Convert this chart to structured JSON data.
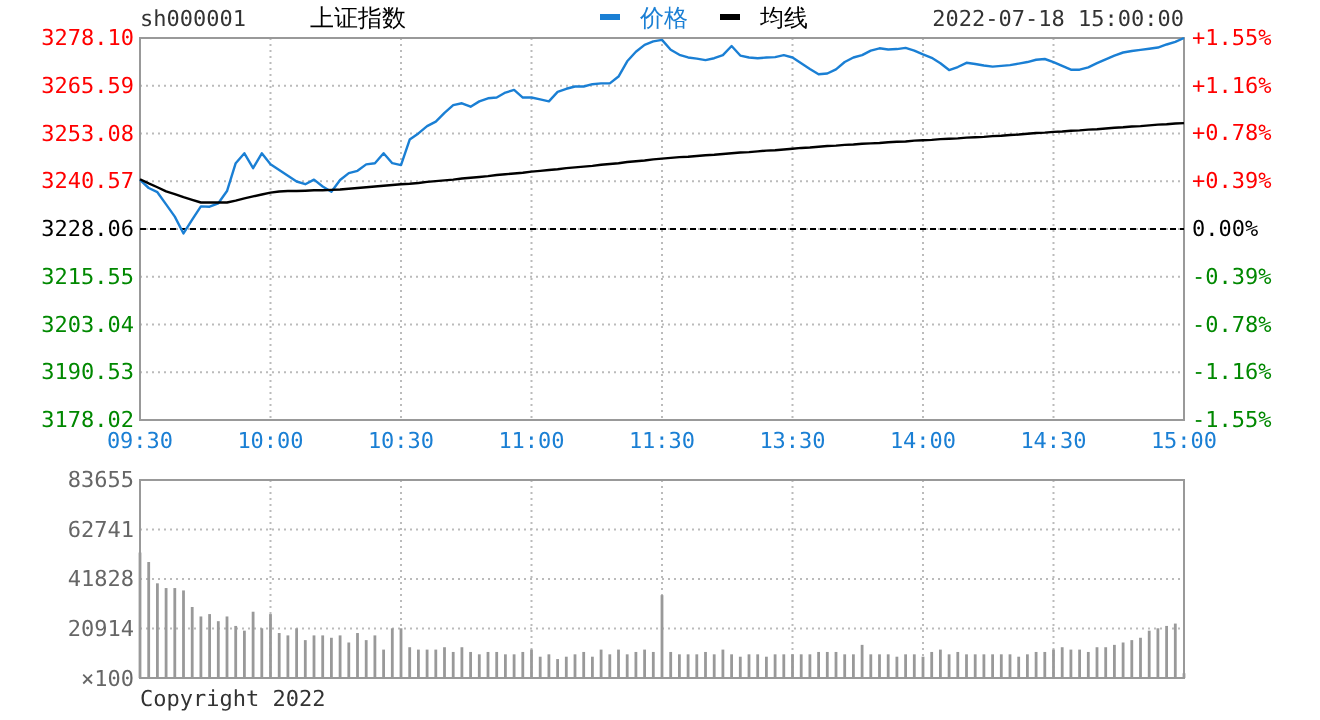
{
  "chart_data": [
    {
      "type": "line",
      "title": "上证指数",
      "annotations": [
        "sh000001",
        "2022-07-18 15:00:00"
      ],
      "categories": [
        "09:30",
        null,
        null,
        null,
        null,
        null,
        null,
        null,
        null,
        null,
        null,
        null,
        null,
        null,
        null,
        "10:00",
        null,
        null,
        null,
        null,
        null,
        null,
        null,
        null,
        null,
        null,
        null,
        null,
        null,
        null,
        "10:30",
        null,
        null,
        null,
        null,
        null,
        null,
        null,
        null,
        null,
        null,
        null,
        null,
        null,
        null,
        "11:00",
        null,
        null,
        null,
        null,
        null,
        null,
        null,
        null,
        null,
        null,
        null,
        null,
        null,
        null,
        "11:30",
        null,
        null,
        null,
        null,
        null,
        null,
        null,
        null,
        null,
        null,
        null,
        null,
        null,
        null,
        "13:30",
        null,
        null,
        null,
        null,
        null,
        null,
        null,
        null,
        null,
        null,
        null,
        null,
        null,
        null,
        "14:00",
        null,
        null,
        null,
        null,
        null,
        null,
        null,
        null,
        null,
        null,
        null,
        null,
        null,
        null,
        "14:30",
        null,
        null,
        null,
        null,
        null,
        null,
        null,
        null,
        null,
        null,
        null,
        null,
        null,
        null,
        "15:00"
      ],
      "ylim": [
        3178.02,
        3278.1
      ],
      "yticks": [
        3178.02,
        3190.53,
        3203.04,
        3215.55,
        3228.06,
        3240.57,
        3253.08,
        3265.59,
        {
          "value": 3278.1,
          "label": "3278.10"
        }
      ],
      "y2lim": [
        -1.55,
        1.55
      ],
      "y2ticks": [
        {
          "value": -1.55,
          "label": "-1.55%"
        },
        {
          "value": -1.16,
          "label": "-1.16%"
        },
        {
          "value": -0.78,
          "label": "-0.78%"
        },
        {
          "value": -0.39,
          "label": "-0.39%"
        },
        {
          "value": 0,
          "label": "0.00%"
        },
        {
          "value": 0.39,
          "label": "+0.39%"
        },
        {
          "value": 0.78,
          "label": "+0.78%"
        },
        {
          "value": 1.16,
          "label": "+1.16%"
        },
        {
          "value": 1.55,
          "label": "+1.55%"
        }
      ],
      "grid": true,
      "legend": "top",
      "ref_lines": [
        {
          "axis": "y",
          "value": 3228.06,
          "color": "#000000",
          "line_style": "dashed"
        }
      ],
      "series": [
        {
          "name": "价格",
          "color": "#1a7fd4",
          "values": [
            3240.9,
            3238.8,
            3237.7,
            3234.5,
            3231.3,
            3226.9,
            3230.5,
            3234.0,
            3233.9,
            3234.8,
            3238.0,
            3245.3,
            3247.9,
            3244.0,
            3247.9,
            3245.0,
            3243.5,
            3242.0,
            3240.5,
            3239.8,
            3241.0,
            3239.2,
            3237.8,
            3240.9,
            3242.7,
            3243.3,
            3245.0,
            3245.3,
            3247.9,
            3245.3,
            3244.8,
            3251.5,
            3253.1,
            3255.0,
            3256.2,
            3258.5,
            3260.5,
            3261.0,
            3260.1,
            3261.5,
            3262.3,
            3262.5,
            3263.8,
            3264.5,
            3262.5,
            3262.5,
            3262.0,
            3261.5,
            3264.0,
            3264.8,
            3265.4,
            3265.4,
            3266.0,
            3266.2,
            3266.2,
            3268.0,
            3272.0,
            3274.5,
            3276.3,
            3277.2,
            3277.6,
            3275.0,
            3273.7,
            3273.0,
            3272.7,
            3272.3,
            3272.8,
            3273.6,
            3276.0,
            3273.5,
            3273.0,
            3272.8,
            3273.0,
            3273.1,
            3273.6,
            3273.0,
            3271.5,
            3270.0,
            3268.6,
            3268.8,
            3269.9,
            3271.8,
            3273.0,
            3273.6,
            3274.8,
            3275.4,
            3275.1,
            3275.2,
            3275.5,
            3274.8,
            3273.8,
            3272.9,
            3271.5,
            3269.7,
            3270.5,
            3271.6,
            3271.3,
            3270.9,
            3270.6,
            3270.8,
            3271.0,
            3271.4,
            3271.8,
            3272.4,
            3272.6,
            3271.8,
            3270.8,
            3269.8,
            3269.8,
            3270.4,
            3271.5,
            3272.5,
            3273.5,
            3274.3,
            3274.7,
            3275.0,
            3275.3,
            3275.6,
            3276.4,
            3277.1,
            3278.1
          ]
        },
        {
          "name": "均线",
          "color": "#000000",
          "values": [
            3241.1,
            3240.0,
            3239.0,
            3237.9,
            3237.2,
            3236.4,
            3235.7,
            3235.0,
            3235.0,
            3235.0,
            3235.0,
            3235.5,
            3236.1,
            3236.6,
            3237.1,
            3237.6,
            3237.9,
            3238.0,
            3238.0,
            3238.1,
            3238.2,
            3238.2,
            3238.3,
            3238.4,
            3238.6,
            3238.8,
            3239.0,
            3239.2,
            3239.4,
            3239.6,
            3239.8,
            3239.9,
            3240.1,
            3240.4,
            3240.6,
            3240.8,
            3241.0,
            3241.3,
            3241.5,
            3241.7,
            3241.9,
            3242.2,
            3242.4,
            3242.6,
            3242.8,
            3243.1,
            3243.3,
            3243.5,
            3243.7,
            3244.0,
            3244.2,
            3244.4,
            3244.6,
            3244.9,
            3245.1,
            3245.3,
            3245.6,
            3245.8,
            3246.0,
            3246.3,
            3246.5,
            3246.7,
            3246.9,
            3247.0,
            3247.2,
            3247.4,
            3247.5,
            3247.7,
            3247.9,
            3248.1,
            3248.2,
            3248.4,
            3248.6,
            3248.7,
            3248.9,
            3249.1,
            3249.3,
            3249.4,
            3249.6,
            3249.8,
            3249.9,
            3250.1,
            3250.2,
            3250.4,
            3250.5,
            3250.6,
            3250.8,
            3250.9,
            3251.0,
            3251.2,
            3251.3,
            3251.4,
            3251.6,
            3251.7,
            3251.8,
            3252.0,
            3252.1,
            3252.2,
            3252.4,
            3252.5,
            3252.7,
            3252.8,
            3253.0,
            3253.2,
            3253.3,
            3253.5,
            3253.6,
            3253.8,
            3253.9,
            3254.1,
            3254.2,
            3254.4,
            3254.6,
            3254.7,
            3254.9,
            3255.0,
            3255.2,
            3255.4,
            3255.5,
            3255.7,
            3255.8
          ]
        }
      ]
    },
    {
      "type": "bar",
      "ylabel": "×100",
      "annotations": [
        "Copyright 2022"
      ],
      "tick_labels": "y",
      "grid": true,
      "categories": [
        null,
        null,
        null,
        null,
        null,
        null,
        null,
        null,
        null,
        null,
        null,
        null,
        null,
        null,
        null,
        null,
        null,
        null,
        null,
        null,
        null,
        null,
        null,
        null,
        null,
        null,
        null,
        null,
        null,
        null,
        null,
        null,
        null,
        null,
        null,
        null,
        null,
        null,
        null,
        null,
        null,
        null,
        null,
        null,
        null,
        null,
        null,
        null,
        null,
        null,
        null,
        null,
        null,
        null,
        null,
        null,
        null,
        null,
        null,
        null,
        null,
        null,
        null,
        null,
        null,
        null,
        null,
        null,
        null,
        null,
        null,
        null,
        null,
        null,
        null,
        null,
        null,
        null,
        null,
        null,
        null,
        null,
        null,
        null,
        null,
        null,
        null,
        null,
        null,
        null,
        null,
        null,
        null,
        null,
        null,
        null,
        null,
        null,
        null,
        null,
        null,
        null,
        null,
        null,
        null,
        null,
        null,
        null,
        null,
        null,
        null,
        null,
        null,
        null,
        null,
        null,
        null,
        null,
        null,
        null,
        null
      ],
      "ylim": [
        0,
        83655
      ],
      "yticks": [
        {
          "value": 0,
          "label": null
        },
        20914,
        41828,
        62741,
        83655
      ],
      "series": [
        {
          "color": "#999999",
          "values": [
            53000,
            49000,
            40000,
            38000,
            38000,
            37000,
            30000,
            26000,
            27000,
            24000,
            26000,
            22000,
            20000,
            28000,
            21000,
            27000,
            19000,
            18000,
            21000,
            16000,
            18000,
            18000,
            17000,
            18000,
            15000,
            19000,
            16000,
            18000,
            12000,
            21000,
            21000,
            13000,
            12000,
            12000,
            12000,
            13000,
            11000,
            13000,
            11000,
            10000,
            11000,
            11000,
            10000,
            10000,
            11000,
            12000,
            9000,
            10000,
            8000,
            9000,
            10000,
            11000,
            9000,
            12000,
            10000,
            12000,
            10000,
            11000,
            12000,
            11000,
            35000,
            11000,
            10000,
            10000,
            10000,
            11000,
            10000,
            12000,
            10000,
            9000,
            10000,
            10000,
            9000,
            10000,
            10000,
            10000,
            10000,
            10000,
            11000,
            11000,
            11000,
            10000,
            10000,
            14000,
            10000,
            10000,
            10000,
            9000,
            10000,
            10000,
            9000,
            11000,
            12000,
            10000,
            11000,
            10000,
            10000,
            10000,
            10000,
            10000,
            10000,
            9000,
            10000,
            11000,
            11000,
            12000,
            13000,
            12000,
            12000,
            11000,
            13000,
            13000,
            14000,
            15000,
            16000,
            17000,
            20000,
            21000,
            22000,
            23000,
            2000
          ]
        }
      ]
    }
  ]
}
